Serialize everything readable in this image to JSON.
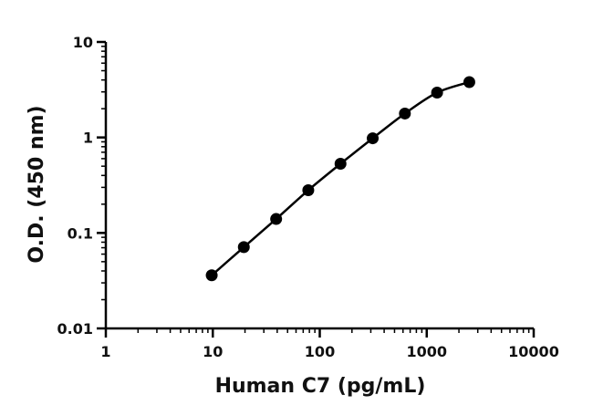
{
  "chart_data": {
    "type": "scatter",
    "title": "",
    "xlabel": "Human C7 (pg/mL)",
    "ylabel": "O.D. (450 nm)",
    "x_scale": "log",
    "y_scale": "log",
    "xlim": [
      1,
      10000
    ],
    "ylim": [
      0.01,
      10
    ],
    "x_ticks": [
      1,
      10,
      100,
      1000,
      10000
    ],
    "x_tick_labels": [
      "1",
      "10",
      "100",
      "1000",
      "10000"
    ],
    "y_ticks": [
      0.01,
      0.1,
      1,
      10
    ],
    "y_tick_labels": [
      "0.01",
      "0.1",
      "1",
      "10"
    ],
    "grid": false,
    "legend": "none",
    "fit_curve": true,
    "colors": {
      "points": "#000000",
      "curve": "#000000",
      "axes": "#000000"
    },
    "series": [
      {
        "x": [
          9.77,
          19.5,
          39.1,
          78.1,
          156.3,
          312.5,
          625,
          1250,
          2500
        ],
        "y": [
          0.036,
          0.071,
          0.14,
          0.28,
          0.53,
          0.98,
          1.78,
          2.95,
          3.8
        ]
      }
    ]
  }
}
